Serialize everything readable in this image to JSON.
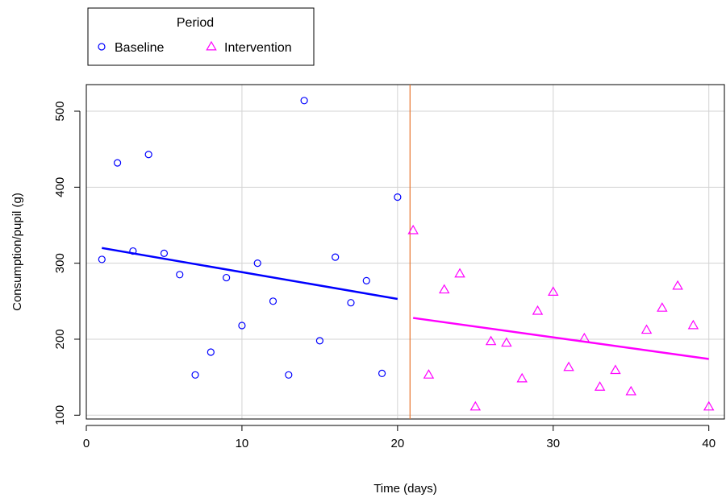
{
  "chart_data": {
    "type": "scatter",
    "xlabel": "Time (days)",
    "ylabel": "Consumption/pupil (g)",
    "xlim": [
      0,
      41
    ],
    "ylim": [
      95,
      535
    ],
    "xticks": [
      0,
      10,
      20,
      30,
      40
    ],
    "yticks": [
      100,
      200,
      300,
      400,
      500
    ],
    "grid": true,
    "legend": {
      "title": "Period",
      "placement": "top-left, above plot",
      "entries": [
        {
          "label": "Baseline",
          "color": "#0000ff",
          "marker": "circle"
        },
        {
          "label": "Intervention",
          "color": "#ff00ff",
          "marker": "triangle"
        }
      ]
    },
    "vline": {
      "x": 20.8,
      "color": "#e8742c"
    },
    "series": [
      {
        "name": "Baseline",
        "color": "#0000ff",
        "marker": "circle",
        "x": [
          1,
          2,
          3,
          4,
          5,
          6,
          7,
          8,
          9,
          10,
          11,
          12,
          13,
          14,
          15,
          16,
          17,
          18,
          19,
          20
        ],
        "y": [
          305,
          432,
          316,
          443,
          313,
          285,
          153,
          183,
          281,
          218,
          300,
          250,
          153,
          514,
          198,
          308,
          248,
          277,
          155,
          387
        ],
        "fit": {
          "x": [
            1,
            20
          ],
          "y": [
            320,
            253
          ]
        }
      },
      {
        "name": "Intervention",
        "color": "#ff00ff",
        "marker": "triangle",
        "x": [
          21,
          22,
          23,
          24,
          25,
          26,
          27,
          28,
          29,
          30,
          31,
          32,
          33,
          34,
          35,
          36,
          37,
          38,
          39,
          40
        ],
        "y": [
          343,
          153,
          265,
          286,
          111,
          197,
          195,
          148,
          237,
          262,
          163,
          201,
          137,
          159,
          131,
          212,
          241,
          270,
          218,
          111
        ],
        "fit": {
          "x": [
            21,
            40
          ],
          "y": [
            228,
            174
          ]
        }
      }
    ]
  }
}
